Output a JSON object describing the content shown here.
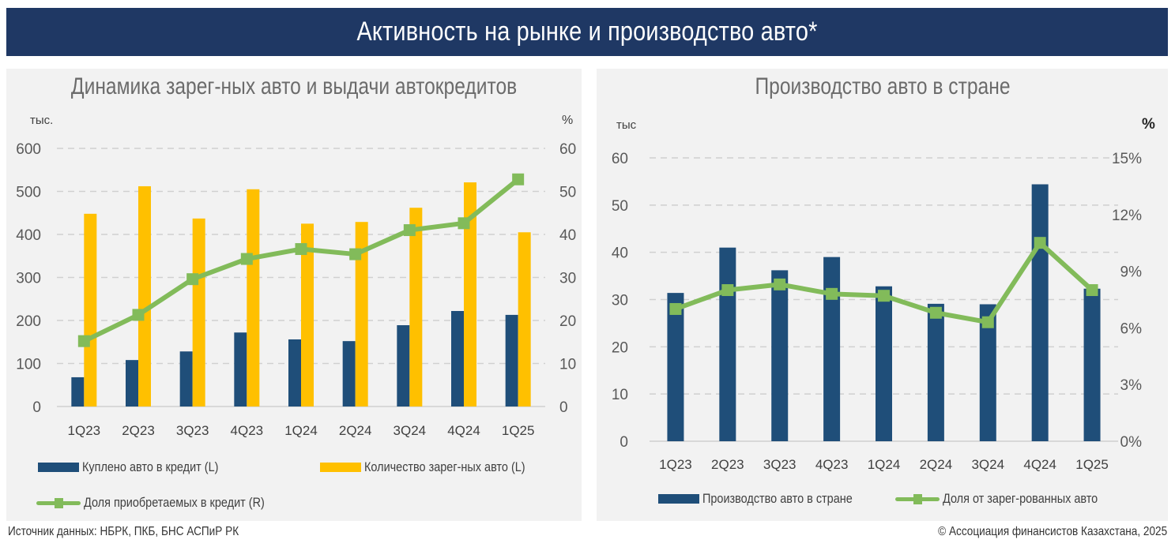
{
  "header": {
    "title": "Активность на рынке и производство авто*"
  },
  "footer": {
    "source": "Источник данных: НБРК, ПКБ, БНС АСПиР РК",
    "copyright": "© Ассоциация финансистов Казахстана, 2025"
  },
  "colors": {
    "banner": "#1f3864",
    "navy_bar": "#1f4e79",
    "yellow_bar": "#ffc000",
    "green_line": "#82bb5a",
    "panel_bg": "#f2f2f2"
  },
  "chart_data": [
    {
      "type": "bar",
      "title": "Динамика зарег-ных авто и выдачи автокредитов",
      "ylabel": "тыс.",
      "y2label": "%",
      "ylim": [
        0,
        600
      ],
      "y2lim": [
        0,
        60
      ],
      "yticks": [
        0,
        100,
        200,
        300,
        400,
        500,
        600
      ],
      "y2ticks": [
        0,
        10,
        20,
        30,
        40,
        50,
        60
      ],
      "grid": true,
      "categories": [
        "1Q23",
        "2Q23",
        "3Q23",
        "4Q23",
        "1Q24",
        "2Q24",
        "3Q24",
        "4Q24",
        "1Q25"
      ],
      "series": [
        {
          "name": "Куплено авто в кредит (L)",
          "type": "bar",
          "axis": "left",
          "color": "#1f4e79",
          "values": [
            68,
            108,
            128,
            172,
            156,
            152,
            189,
            222,
            213
          ]
        },
        {
          "name": "Количество зарег-ных авто (L)",
          "type": "bar",
          "axis": "left",
          "color": "#ffc000",
          "values": [
            448,
            512,
            437,
            505,
            425,
            429,
            462,
            521,
            405
          ]
        },
        {
          "name": "Доля приобретаемых в кредит (R)",
          "type": "line",
          "axis": "right",
          "color": "#82bb5a",
          "values": [
            15.2,
            21.3,
            29.6,
            34.3,
            36.6,
            35.4,
            41.0,
            42.6,
            52.8
          ]
        }
      ],
      "legend": "bottom"
    },
    {
      "type": "bar",
      "title": "Производство авто в стране",
      "ylabel": "тыс",
      "y2label": "%",
      "ylim": [
        0,
        60
      ],
      "y2lim": [
        0,
        15
      ],
      "yticks": [
        0,
        10,
        20,
        30,
        40,
        50,
        60
      ],
      "y2ticks": [
        "0%",
        "3%",
        "6%",
        "9%",
        "12%",
        "15%"
      ],
      "grid": true,
      "categories": [
        "1Q23",
        "2Q23",
        "3Q23",
        "4Q23",
        "1Q24",
        "2Q24",
        "3Q24",
        "4Q24",
        "1Q25"
      ],
      "series": [
        {
          "name": "Производство авто в стране",
          "type": "bar",
          "axis": "left",
          "color": "#1f4e79",
          "values": [
            31.4,
            41.0,
            36.2,
            39.0,
            32.8,
            29.1,
            29.0,
            54.4,
            32.3
          ]
        },
        {
          "name": "Доля от зарег-рованных авто",
          "type": "line",
          "axis": "right",
          "color": "#82bb5a",
          "values": [
            7.0,
            8.0,
            8.3,
            7.8,
            7.7,
            6.8,
            6.3,
            10.5,
            8.0
          ]
        }
      ],
      "legend": "bottom"
    }
  ]
}
